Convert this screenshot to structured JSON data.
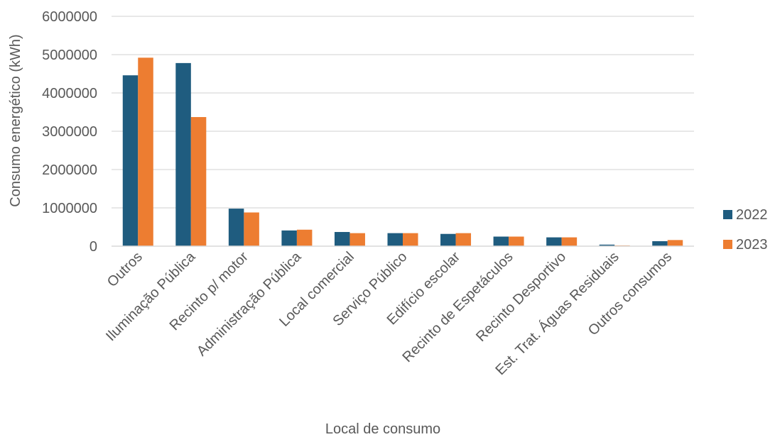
{
  "chart_data": {
    "type": "bar",
    "categories": [
      "Outros",
      "Iluminação Pública",
      "Recinto p/ motor",
      "Administração Pública",
      "Local comercial",
      "Serviço Público",
      "Edifício escolar",
      "Recinto de Espetáculos",
      "Recinto Desportivo",
      "Est. Trat. Águas Residuais",
      "Outros consumos"
    ],
    "series": [
      {
        "name": "2022",
        "color": "#1F5C7F",
        "values": [
          4460000,
          4780000,
          980000,
          410000,
          370000,
          340000,
          320000,
          250000,
          230000,
          40000,
          130000
        ]
      },
      {
        "name": "2023",
        "color": "#ED7D31",
        "values": [
          4920000,
          3370000,
          880000,
          430000,
          340000,
          340000,
          340000,
          250000,
          230000,
          20000,
          160000
        ]
      }
    ],
    "xlabel": "Local de consumo",
    "ylabel": "Consumo energético (kWh)",
    "ylim": [
      0,
      6000000
    ],
    "yticks": [
      "0",
      "1000000",
      "2000000",
      "3000000",
      "4000000",
      "5000000",
      "6000000"
    ],
    "grid": true,
    "legend_position": "right"
  }
}
